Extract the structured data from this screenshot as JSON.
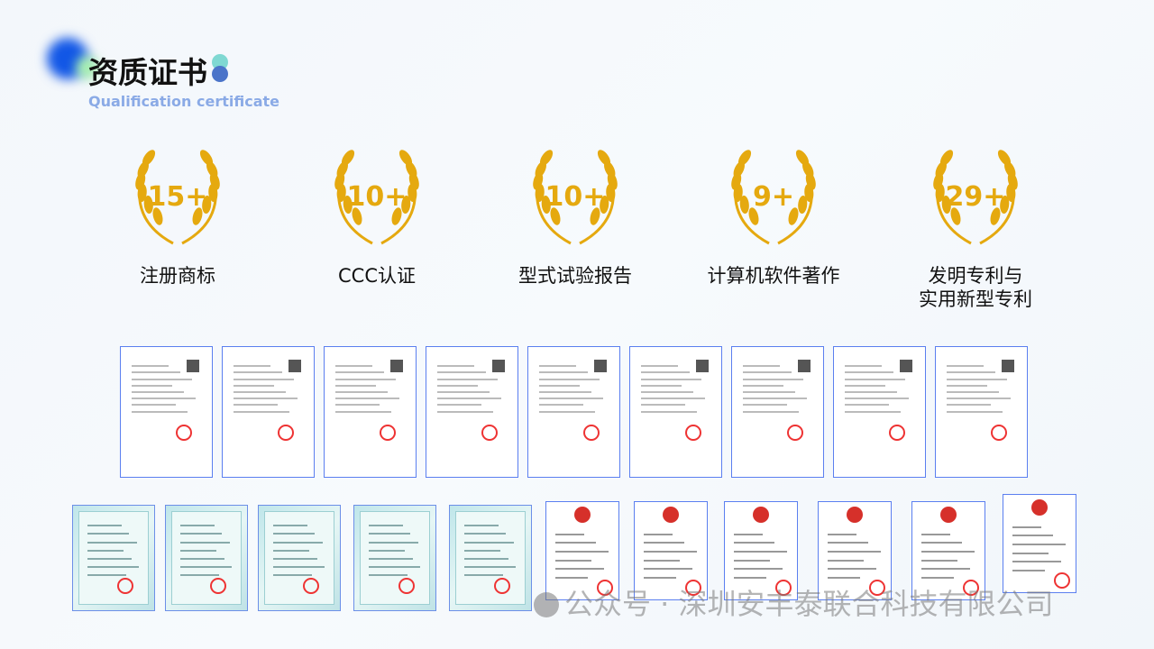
{
  "header": {
    "title": "资质证书",
    "subtitle": "Qualification certificate"
  },
  "stats": [
    {
      "value": "15+",
      "label": "注册商标"
    },
    {
      "value": "10+",
      "label": "CCC认证"
    },
    {
      "value": "10+",
      "label": "型式试验报告"
    },
    {
      "value": "9+",
      "label": "计算机软件著作"
    },
    {
      "value": "29+",
      "label": "发明专利与\n实用新型专利"
    }
  ],
  "colors": {
    "gold": "#e5a90f",
    "accent": "#5b7ff0"
  },
  "watermark": "公众号 · 深圳安丰泰联合科技有限公司"
}
